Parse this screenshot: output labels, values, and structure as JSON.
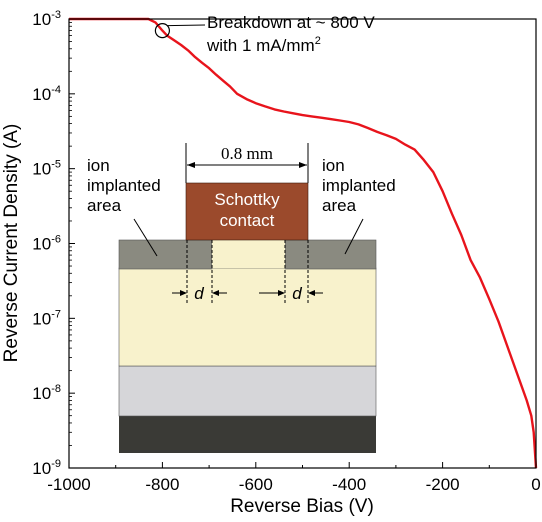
{
  "chart_data": {
    "type": "line",
    "xlabel": "Reverse Bias (V)",
    "ylabel": "Reverse Current Density (A)",
    "xlim": [
      -1000,
      0
    ],
    "ylim": [
      1e-09,
      0.001
    ],
    "yscale": "log",
    "grid": false,
    "x_ticks": [
      {
        "value": -1000,
        "label": "-1000"
      },
      {
        "value": -800,
        "label": "-800"
      },
      {
        "value": -600,
        "label": "-600"
      },
      {
        "value": -400,
        "label": "-400"
      },
      {
        "value": -200,
        "label": "-200"
      },
      {
        "value": 0,
        "label": "0"
      }
    ],
    "y_ticks": [
      {
        "value": 0.001,
        "base": "10",
        "exp": "-3"
      },
      {
        "value": 0.0001,
        "base": "10",
        "exp": "-4"
      },
      {
        "value": 1e-05,
        "base": "10",
        "exp": "-5"
      },
      {
        "value": 1e-06,
        "base": "10",
        "exp": "-6"
      },
      {
        "value": 1e-07,
        "base": "10",
        "exp": "-7"
      },
      {
        "value": 1e-08,
        "base": "10",
        "exp": "-8"
      },
      {
        "value": 1e-09,
        "base": "10",
        "exp": "-9"
      }
    ],
    "series": [
      {
        "color": "#e8141c",
        "x": [
          -1000,
          -900,
          -830,
          -815,
          -800,
          -790,
          -775,
          -760,
          -745,
          -730,
          -715,
          -700,
          -685,
          -670,
          -655,
          -640,
          -620,
          -600,
          -580,
          -560,
          -540,
          -520,
          -500,
          -480,
          -460,
          -440,
          -420,
          -400,
          -380,
          -360,
          -340,
          -320,
          -300,
          -280,
          -260,
          -240,
          -220,
          -200,
          -180,
          -160,
          -140,
          -120,
          -100,
          -80,
          -60,
          -40,
          -20,
          -10,
          -5,
          0
        ],
        "y": [
          0.001,
          0.001,
          0.001,
          0.0009,
          0.0007,
          0.0006,
          0.00052,
          0.00045,
          0.00038,
          0.00031,
          0.00026,
          0.00022,
          0.00018,
          0.00015,
          0.000125,
          0.0001,
          8.5e-05,
          7.5e-05,
          6.8e-05,
          6.2e-05,
          5.8e-05,
          5.5e-05,
          5.2e-05,
          5e-05,
          4.8e-05,
          4.6e-05,
          4.4e-05,
          4.2e-05,
          3.9e-05,
          3.5e-05,
          3.1e-05,
          2.8e-05,
          2.5e-05,
          2.1e-05,
          1.8e-05,
          1.3e-05,
          9e-06,
          5e-06,
          2.5e-06,
          1.3e-06,
          6e-07,
          3.5e-07,
          1.8e-07,
          9e-08,
          4e-08,
          1.8e-08,
          8e-09,
          5e-09,
          3e-09,
          1e-09
        ]
      }
    ],
    "annotations": [
      {
        "text_line1": "Breakdown at ~ 800 V",
        "text_line2_base": "with 1 mA/mm",
        "text_line2_sup": "2",
        "marker_x": -800,
        "marker_y": 0.0007
      }
    ]
  },
  "inset": {
    "width_label": "0.8 mm",
    "contact_line1": "Schottky",
    "contact_line2": "contact",
    "left_area_line1": "ion",
    "left_area_line2": "implanted",
    "left_area_line3": "area",
    "right_area_line1": "ion",
    "right_area_line2": "implanted",
    "right_area_line3": "area",
    "d_label": "d",
    "colors": {
      "contact": "#9b4a2c",
      "implant": "#8a8a80",
      "drift": "#f8f2cc",
      "buffer": "#d6d6d9",
      "substrate": "#3a3a36"
    }
  }
}
